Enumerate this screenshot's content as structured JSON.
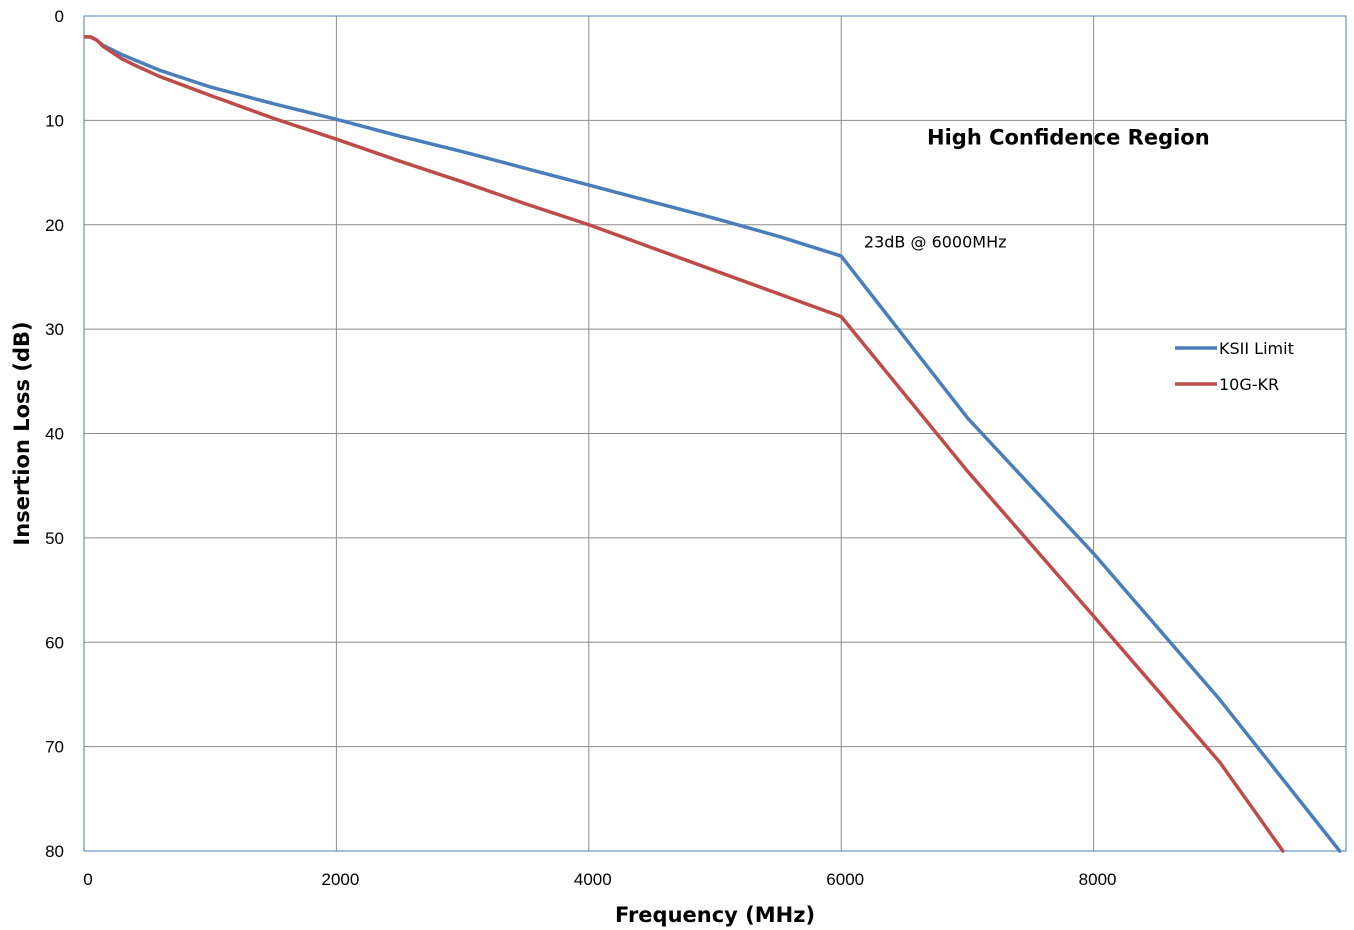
{
  "chart_data": {
    "type": "line",
    "title": "",
    "xlabel": "Frequency (MHz)",
    "ylabel": "Insertion Loss (dB)",
    "xlim": [
      0,
      10000
    ],
    "ylim": [
      0,
      80
    ],
    "y_inverted": true,
    "grid": true,
    "legend_position": "right",
    "x_ticks": [
      0,
      2000,
      4000,
      6000,
      8000
    ],
    "y_ticks": [
      0,
      10,
      20,
      30,
      40,
      50,
      60,
      70,
      80
    ],
    "x_tick_labels": [
      "0",
      "2000",
      "4000",
      "6000",
      "8000"
    ],
    "y_tick_labels": [
      "0",
      "10",
      "20",
      "30",
      "40",
      "50",
      "60",
      "70",
      "80"
    ],
    "series": [
      {
        "name": "KSII Limit",
        "color": "#4a7ebb",
        "points": [
          [
            10,
            2
          ],
          [
            50,
            2
          ],
          [
            100,
            2.3
          ],
          [
            150,
            2.8
          ],
          [
            200,
            3.1
          ],
          [
            300,
            3.7
          ],
          [
            400,
            4.2
          ],
          [
            600,
            5.2
          ],
          [
            800,
            6.0
          ],
          [
            1000,
            6.8
          ],
          [
            1500,
            8.4
          ],
          [
            2000,
            9.9
          ],
          [
            2500,
            11.5
          ],
          [
            3000,
            13.0
          ],
          [
            3500,
            14.6
          ],
          [
            4000,
            16.2
          ],
          [
            4500,
            17.8
          ],
          [
            5000,
            19.4
          ],
          [
            5500,
            21.1
          ],
          [
            6000,
            23.0
          ],
          [
            7000,
            38.5
          ],
          [
            8000,
            51.5
          ],
          [
            9000,
            65.5
          ],
          [
            9950,
            80
          ]
        ]
      },
      {
        "name": "10G-KR",
        "color": "#be4b48",
        "points": [
          [
            10,
            2
          ],
          [
            50,
            2
          ],
          [
            100,
            2.3
          ],
          [
            150,
            2.9
          ],
          [
            200,
            3.3
          ],
          [
            300,
            4.1
          ],
          [
            400,
            4.7
          ],
          [
            600,
            5.8
          ],
          [
            800,
            6.7
          ],
          [
            1000,
            7.6
          ],
          [
            1500,
            9.8
          ],
          [
            2000,
            11.8
          ],
          [
            2500,
            13.9
          ],
          [
            3000,
            15.9
          ],
          [
            3500,
            18.0
          ],
          [
            4000,
            20.0
          ],
          [
            4500,
            22.2
          ],
          [
            5000,
            24.4
          ],
          [
            5500,
            26.6
          ],
          [
            6000,
            28.8
          ],
          [
            7000,
            43.6
          ],
          [
            8000,
            57.5
          ],
          [
            9000,
            71.5
          ],
          [
            9500,
            80
          ]
        ]
      }
    ],
    "annotations": [
      {
        "text": "High Confidence Region",
        "bold": true,
        "x": 7800,
        "y": 12.3
      },
      {
        "text": "23dB @ 6000MHz",
        "bold": false,
        "x": 6180,
        "y": 22.2
      }
    ]
  }
}
